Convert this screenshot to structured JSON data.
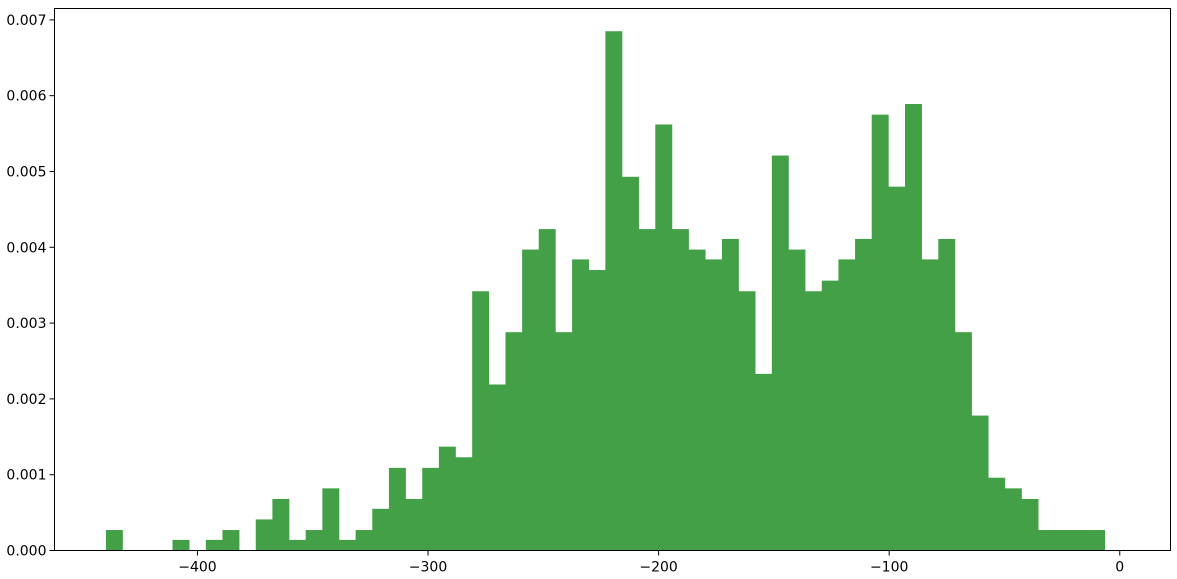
{
  "chart_data": {
    "type": "bar",
    "subtype": "histogram",
    "title": "",
    "xlabel": "",
    "ylabel": "",
    "bar_color": "#43a047",
    "grid": false,
    "legend": "none",
    "xlim": [
      -462,
      22
    ],
    "ylim": [
      0,
      0.00715
    ],
    "xticks": [
      -400,
      -300,
      -200,
      -100,
      0
    ],
    "xtick_labels": [
      "−400",
      "−300",
      "−200",
      "−100",
      "0"
    ],
    "yticks": [
      0,
      0.001,
      0.002,
      0.003,
      0.004,
      0.005,
      0.006,
      0.007
    ],
    "ytick_labels": [
      "0.000",
      "0.001",
      "0.002",
      "0.003",
      "0.004",
      "0.005",
      "0.006",
      "0.007"
    ],
    "bin_start": -439.7,
    "bin_width": 7.22,
    "values": [
      0.00027,
      0,
      0,
      0,
      0.00014,
      0,
      0.00014,
      0.00027,
      0,
      0.00041,
      0.00068,
      0.00014,
      0.00027,
      0.00082,
      0.00014,
      0.00027,
      0.00055,
      0.00109,
      0.00068,
      0.00109,
      0.00137,
      0.00123,
      0.00342,
      0.00219,
      0.00288,
      0.00397,
      0.00424,
      0.00288,
      0.00384,
      0.0037,
      0.00685,
      0.00493,
      0.00424,
      0.00562,
      0.00424,
      0.00397,
      0.00384,
      0.00411,
      0.00342,
      0.00233,
      0.00521,
      0.00397,
      0.00342,
      0.00356,
      0.00384,
      0.00411,
      0.00575,
      0.0048,
      0.00589,
      0.00384,
      0.00411,
      0.00288,
      0.00178,
      0.00096,
      0.00082,
      0.00068,
      0.00027,
      0.00027,
      0.00027,
      0.00027
    ]
  }
}
